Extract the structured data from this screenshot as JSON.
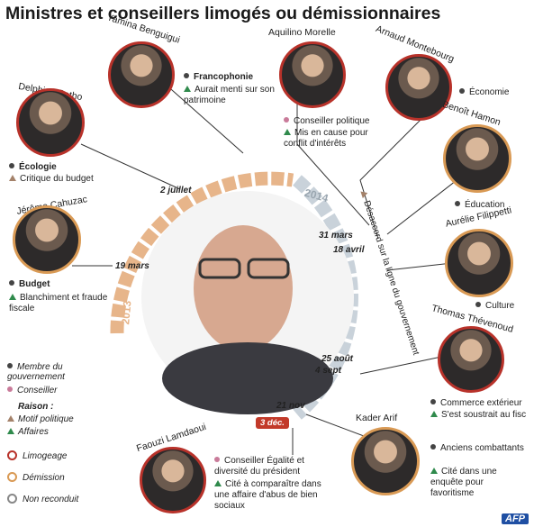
{
  "title": "Ministres et conseillers limogés ou démissionnaires",
  "timeline": {
    "year_left": "2013",
    "year_right": "2014",
    "dates": [
      "2 juillet",
      "19 mars",
      "31 mars",
      "18 avril",
      "25 août",
      "4 sept",
      "21 nov",
      "3 déc."
    ]
  },
  "people": [
    {
      "name": "Yamina Benguigui",
      "line1": "Francophonie",
      "line2": "Aurait menti sur son patrimoine"
    },
    {
      "name": "Aquilino Morelle",
      "line1": "Conseiller politique",
      "line2": "Mis en cause pour conflit d'intérêts"
    },
    {
      "name": "Arnaud Montebourg",
      "line1": "Économie"
    },
    {
      "name": "Delphine Batho",
      "line1": "Écologie",
      "line2": "Critique du budget"
    },
    {
      "name": "Benoît Hamon",
      "line1": "Éducation"
    },
    {
      "name": "Jérôme Cahuzac",
      "line1": "Budget",
      "line2": "Blanchiment et fraude fiscale"
    },
    {
      "name": "Aurélie Filippetti",
      "line1": "Culture"
    },
    {
      "name": "Thomas Thévenoud",
      "line1": "Commerce extérieur",
      "line2": "S'est soustrait au fisc"
    },
    {
      "name": "Kader Arif",
      "line1": "Anciens combattants",
      "line2": "Cité dans une enquête pour favoritisme"
    },
    {
      "name": "Faouzi Lamdaoui",
      "line1": "Conseiller Égalité et diversité du président",
      "line2": "Cité à comparaître dans une affaire d'abus de bien sociaux"
    }
  ],
  "shared_reason": "Désaccord sur la ligne du gouvernement",
  "legend": {
    "membre": "Membre du gouvernement",
    "conseiller": "Conseiller",
    "raison": "Raison :",
    "motif": "Motif politique",
    "affaires": "Affaires",
    "limogeage": "Limogeage",
    "demission": "Démission",
    "non_reconduit": "Non reconduit"
  },
  "colors": {
    "limogeage": "#b8322a",
    "demission": "#d99a55",
    "non_reconduit": "#888888",
    "affaires": "#2f8a4c",
    "motif": "#a4826a",
    "conseiller": "#c97b9a"
  },
  "credit": "AFP"
}
